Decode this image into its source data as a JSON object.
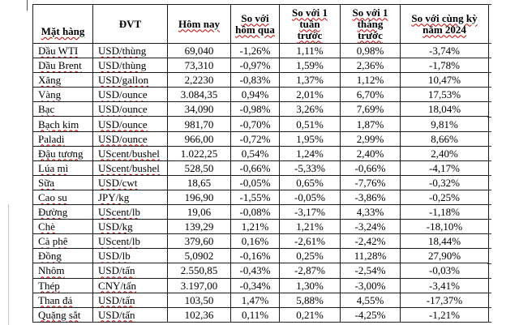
{
  "table": {
    "columns": [
      {
        "key": "name",
        "label": "Mặt hàng",
        "squiggle": true
      },
      {
        "key": "unit",
        "label": "ĐVT",
        "squiggle": false
      },
      {
        "key": "today",
        "label": "Hôm nay",
        "squiggle": true
      },
      {
        "key": "vs_yesterday",
        "label": "So với\nhôm qua",
        "squiggle": true
      },
      {
        "key": "vs_week",
        "label": "So với 1\ntuần\ntrước",
        "squiggle": true
      },
      {
        "key": "vs_month",
        "label": "So với 1\ntháng\ntrước",
        "squiggle": true
      },
      {
        "key": "vs_2024",
        "label": "So với cùng kỳ\nnăm 2024",
        "squiggle": true
      }
    ],
    "rows": [
      {
        "name": "Dầu WTI",
        "unit": "USD/thùng",
        "today": "69,040",
        "vs_yesterday": "-1,26%",
        "vs_week": "1,11%",
        "vs_month": "0,98%",
        "vs_2024": "-3,74%"
      },
      {
        "name": "Dầu Brent",
        "unit": "USD/thùng",
        "today": "73,310",
        "vs_yesterday": "-0,97%",
        "vs_week": "1,59%",
        "vs_month": "2,36%",
        "vs_2024": "-1,78%"
      },
      {
        "name": "Xăng",
        "unit": "USD/gallon",
        "today": "2,2230",
        "vs_yesterday": "-0,83%",
        "vs_week": "1,37%",
        "vs_month": "1,12%",
        "vs_2024": "10,47%"
      },
      {
        "name": "Vàng",
        "unit": "USD/ounce",
        "today": "3.084,35",
        "vs_yesterday": "0,94%",
        "vs_week": "2,01%",
        "vs_month": "6,70%",
        "vs_2024": "17,53%"
      },
      {
        "name": "Bạc",
        "unit": "USD/ounce",
        "today": "34,090",
        "vs_yesterday": "-0,98%",
        "vs_week": "3,26%",
        "vs_month": "7,69%",
        "vs_2024": "18,04%"
      },
      {
        "name": "Bạch kim",
        "unit": "USD/ounce",
        "today": "981,70",
        "vs_yesterday": "-0,70%",
        "vs_week": "0,51%",
        "vs_month": "1,87%",
        "vs_2024": "9,81%"
      },
      {
        "name": "Paladi",
        "unit": "USD/ounce",
        "today": "966,00",
        "vs_yesterday": "-0,72%",
        "vs_week": "1,95%",
        "vs_month": "2,99%",
        "vs_2024": "8,66%"
      },
      {
        "name": "Đậu tương",
        "unit": "UScent/bushel",
        "today": "1.022,25",
        "vs_yesterday": "0,54%",
        "vs_week": "1,24%",
        "vs_month": "2,40%",
        "vs_2024": "2,40%"
      },
      {
        "name": "Lúa mì",
        "unit": "UScent/bushel",
        "today": "528,50",
        "vs_yesterday": "-0,66%",
        "vs_week": "-5,33%",
        "vs_month": "-0,66%",
        "vs_2024": "-4,17%"
      },
      {
        "name": "Sữa",
        "unit": "USD/cwt",
        "today": "18,65",
        "vs_yesterday": "-0,05%",
        "vs_week": "0,65%",
        "vs_month": "-7,76%",
        "vs_2024": "-0,32%"
      },
      {
        "name": "Cao su",
        "unit": "JPY/kg",
        "today": "196,90",
        "vs_yesterday": "-1,55%",
        "vs_week": "-0,05%",
        "vs_month": "-3,86%",
        "vs_2024": "-0,25%"
      },
      {
        "name": "Đường",
        "unit": "UScent/lb",
        "today": "19,06",
        "vs_yesterday": "-0,08%",
        "vs_week": "-3,17%",
        "vs_month": "4,33%",
        "vs_2024": "-1,18%"
      },
      {
        "name": "Chè",
        "unit": "USD/kg",
        "today": "139,29",
        "vs_yesterday": "1,21%",
        "vs_week": "1,21%",
        "vs_month": "-3,24%",
        "vs_2024": "-18,10%"
      },
      {
        "name": "Cà phê",
        "unit": "UScent/lb",
        "today": "379,60",
        "vs_yesterday": "0,16%",
        "vs_week": "-2,61%",
        "vs_month": "-2,42%",
        "vs_2024": "18,44%"
      },
      {
        "name": "Đồng",
        "unit": "USD/lb",
        "today": "5,0902",
        "vs_yesterday": "-0,16%",
        "vs_week": "0,25%",
        "vs_month": "11,28%",
        "vs_2024": "27,90%"
      },
      {
        "name": "Nhôm",
        "unit": "USD/tấn",
        "today": "2.550,85",
        "vs_yesterday": "-0,43%",
        "vs_week": "-2,87%",
        "vs_month": "-2,54%",
        "vs_2024": "-0,03%"
      },
      {
        "name": "Thép",
        "unit": "CNY/tấn",
        "today": "3.197,00",
        "vs_yesterday": "-0,34%",
        "vs_week": "1,30%",
        "vs_month": "-3,00%",
        "vs_2024": "-3,41%"
      },
      {
        "name": "Than đá",
        "unit": "USD/tấn",
        "today": "103,50",
        "vs_yesterday": "1,47%",
        "vs_week": "5,88%",
        "vs_month": "4,55%",
        "vs_2024": "-17,37%"
      },
      {
        "name": "Quặng sắt",
        "unit": "USD/tấn",
        "today": "102,36",
        "vs_yesterday": "0,11%",
        "vs_week": "0,21%",
        "vs_month": "-4,25%",
        "vs_2024": "-1,21%"
      }
    ]
  },
  "colors": {
    "squiggle": "#c00000",
    "border": "#1c1c1c",
    "text": "#000000",
    "background": "#ffffff"
  }
}
